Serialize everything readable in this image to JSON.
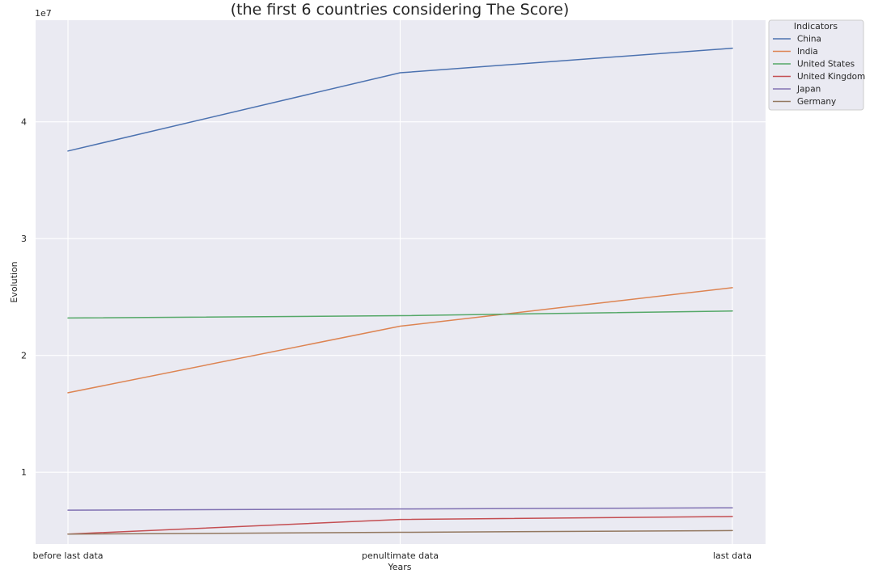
{
  "chart_data": {
    "type": "line",
    "title": "(the first 6 countries considering The Score)",
    "xlabel": "Years",
    "ylabel": "Evolution",
    "y_offset_label": "1e7",
    "categories": [
      "before last data",
      "penultimate data",
      "last data"
    ],
    "ylim": [
      3850000,
      48700000
    ],
    "yticks": [
      10000000,
      20000000,
      30000000,
      40000000
    ],
    "ytick_labels": [
      "1",
      "2",
      "3",
      "4"
    ],
    "grid": true,
    "legend": {
      "title": "Indicators",
      "placement": "outside-top-right"
    },
    "series": [
      {
        "name": "China",
        "color": "#4c72b0",
        "values": [
          37500000,
          44200000,
          46300000
        ]
      },
      {
        "name": "India",
        "color": "#dd8452",
        "values": [
          16800000,
          22500000,
          25800000
        ]
      },
      {
        "name": "United States",
        "color": "#55a868",
        "values": [
          23200000,
          23400000,
          23800000
        ]
      },
      {
        "name": "United Kingdom",
        "color": "#c44e52",
        "values": [
          4700000,
          5950000,
          6200000
        ]
      },
      {
        "name": "Japan",
        "color": "#8172b3",
        "values": [
          6750000,
          6850000,
          6950000
        ]
      },
      {
        "name": "Germany",
        "color": "#937860",
        "values": [
          4700000,
          4850000,
          5000000
        ]
      }
    ]
  }
}
